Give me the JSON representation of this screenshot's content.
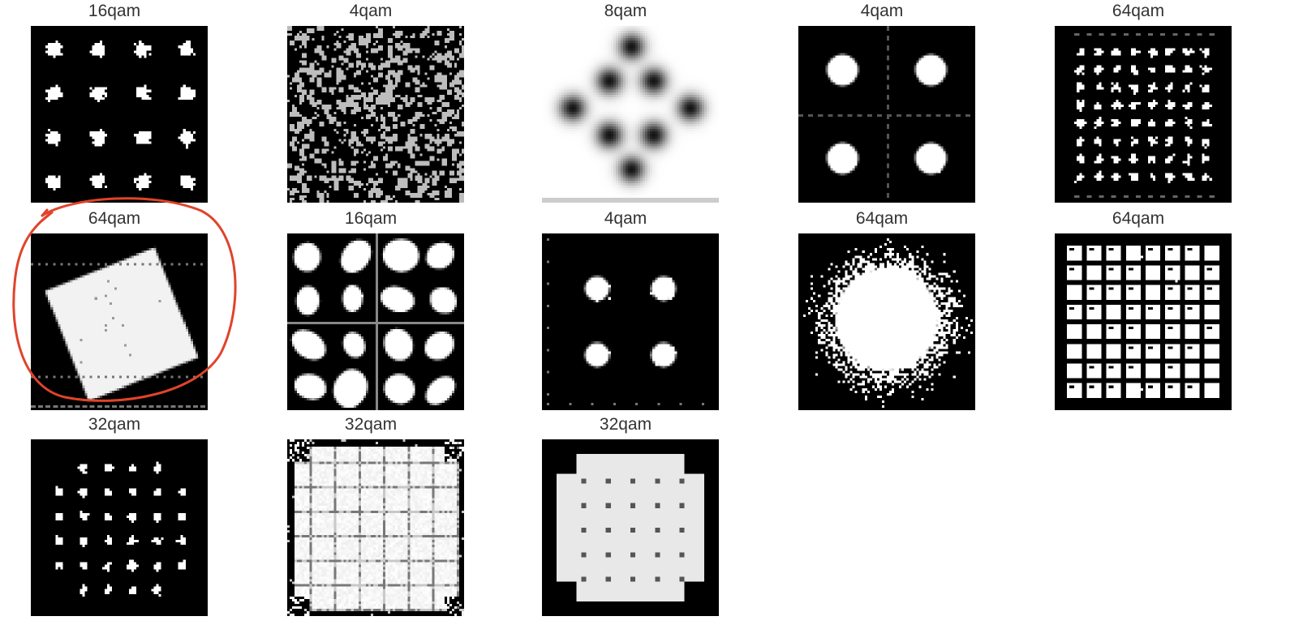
{
  "grid": {
    "rows": 3,
    "columns": 5,
    "items": [
      {
        "label": "16qam",
        "pattern": "clusters",
        "n": 4,
        "background": "#000000",
        "foreground": "#ffffff"
      },
      {
        "label": "4qam",
        "pattern": "speckle",
        "background": "#000000",
        "foreground": "#bdbdbd"
      },
      {
        "label": "8qam",
        "pattern": "diamond-blur",
        "background": "#ffffff",
        "foreground": "#111111"
      },
      {
        "label": "4qam",
        "pattern": "clusters",
        "n": 2,
        "background": "#000000",
        "foreground": "#ffffff"
      },
      {
        "label": "64qam",
        "pattern": "dense-square",
        "background": "#000000",
        "foreground": "#ffffff"
      },
      {
        "label": "64qam",
        "pattern": "rotated-square",
        "background": "#000000",
        "foreground": "#f2f2f2",
        "highlighted": true
      },
      {
        "label": "16qam",
        "pattern": "blobs",
        "n": 4,
        "background": "#000000",
        "foreground": "#ffffff"
      },
      {
        "label": "4qam",
        "pattern": "clusters-small",
        "n": 2,
        "background": "#000000",
        "foreground": "#ffffff"
      },
      {
        "label": "64qam",
        "pattern": "round-cloud",
        "background": "#000000",
        "foreground": "#ffffff"
      },
      {
        "label": "64qam",
        "pattern": "grid-mesh",
        "background": "#000000",
        "foreground": "#ffffff"
      },
      {
        "label": "32qam",
        "pattern": "cross-32",
        "background": "#000000",
        "foreground": "#ffffff"
      },
      {
        "label": "32qam",
        "pattern": "soft-grid",
        "background": "#000000",
        "foreground": "#f4f4f4"
      },
      {
        "label": "32qam",
        "pattern": "cross-blob",
        "background": "#000000",
        "foreground": "#e8e8e8"
      }
    ]
  },
  "annotation": {
    "shape": "hand-drawn-circle",
    "color": "#e0442b",
    "target_item": 5
  }
}
